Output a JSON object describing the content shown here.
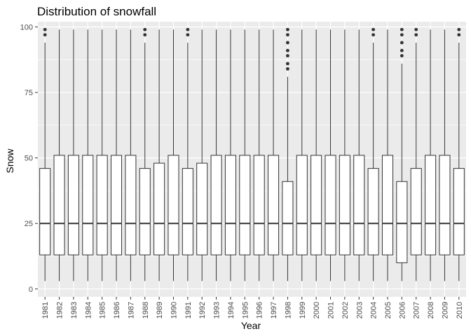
{
  "chart_data": {
    "type": "boxplot",
    "title": "Distribution of snowfall",
    "xlabel": "Year",
    "ylabel": "Snow",
    "ylim": [
      -3,
      102
    ],
    "yticks": [
      0,
      25,
      50,
      75,
      100
    ],
    "categories": [
      "1981",
      "1982",
      "1983",
      "1984",
      "1985",
      "1986",
      "1987",
      "1988",
      "1989",
      "1990",
      "1991",
      "1992",
      "1993",
      "1994",
      "1995",
      "1996",
      "1997",
      "1998",
      "1999",
      "2000",
      "2001",
      "2002",
      "2003",
      "2004",
      "2005",
      "2006",
      "2007",
      "2008",
      "2009",
      "2010"
    ],
    "boxes": [
      {
        "whisker_low": 3,
        "q1": 13,
        "median": 25,
        "q3": 46,
        "whisker_high": 94,
        "outliers": [
          97,
          99
        ]
      },
      {
        "whisker_low": 3,
        "q1": 13,
        "median": 25,
        "q3": 51,
        "whisker_high": 99,
        "outliers": []
      },
      {
        "whisker_low": 3,
        "q1": 13,
        "median": 25,
        "q3": 51,
        "whisker_high": 99,
        "outliers": []
      },
      {
        "whisker_low": 3,
        "q1": 13,
        "median": 25,
        "q3": 51,
        "whisker_high": 99,
        "outliers": []
      },
      {
        "whisker_low": 3,
        "q1": 13,
        "median": 25,
        "q3": 51,
        "whisker_high": 99,
        "outliers": []
      },
      {
        "whisker_low": 3,
        "q1": 13,
        "median": 25,
        "q3": 51,
        "whisker_high": 99,
        "outliers": []
      },
      {
        "whisker_low": 3,
        "q1": 13,
        "median": 25,
        "q3": 51,
        "whisker_high": 99,
        "outliers": []
      },
      {
        "whisker_low": 3,
        "q1": 13,
        "median": 25,
        "q3": 46,
        "whisker_high": 94,
        "outliers": [
          97,
          99
        ]
      },
      {
        "whisker_low": 3,
        "q1": 13,
        "median": 25,
        "q3": 48,
        "whisker_high": 99,
        "outliers": []
      },
      {
        "whisker_low": 3,
        "q1": 13,
        "median": 25,
        "q3": 51,
        "whisker_high": 99,
        "outliers": []
      },
      {
        "whisker_low": 3,
        "q1": 13,
        "median": 25,
        "q3": 46,
        "whisker_high": 94,
        "outliers": [
          97,
          99
        ]
      },
      {
        "whisker_low": 3,
        "q1": 13,
        "median": 25,
        "q3": 48,
        "whisker_high": 99,
        "outliers": []
      },
      {
        "whisker_low": 3,
        "q1": 13,
        "median": 25,
        "q3": 51,
        "whisker_high": 99,
        "outliers": []
      },
      {
        "whisker_low": 3,
        "q1": 13,
        "median": 25,
        "q3": 51,
        "whisker_high": 99,
        "outliers": []
      },
      {
        "whisker_low": 3,
        "q1": 13,
        "median": 25,
        "q3": 51,
        "whisker_high": 99,
        "outliers": []
      },
      {
        "whisker_low": 3,
        "q1": 13,
        "median": 25,
        "q3": 51,
        "whisker_high": 99,
        "outliers": []
      },
      {
        "whisker_low": 3,
        "q1": 13,
        "median": 25,
        "q3": 51,
        "whisker_high": 99,
        "outliers": []
      },
      {
        "whisker_low": 3,
        "q1": 13,
        "median": 25,
        "q3": 41,
        "whisker_high": 81,
        "outliers": [
          84,
          86,
          89,
          91,
          94,
          97,
          99
        ]
      },
      {
        "whisker_low": 3,
        "q1": 13,
        "median": 25,
        "q3": 51,
        "whisker_high": 99,
        "outliers": []
      },
      {
        "whisker_low": 3,
        "q1": 13,
        "median": 25,
        "q3": 51,
        "whisker_high": 99,
        "outliers": []
      },
      {
        "whisker_low": 3,
        "q1": 13,
        "median": 25,
        "q3": 51,
        "whisker_high": 99,
        "outliers": []
      },
      {
        "whisker_low": 3,
        "q1": 13,
        "median": 25,
        "q3": 51,
        "whisker_high": 99,
        "outliers": []
      },
      {
        "whisker_low": 3,
        "q1": 13,
        "median": 25,
        "q3": 51,
        "whisker_high": 99,
        "outliers": []
      },
      {
        "whisker_low": 3,
        "q1": 13,
        "median": 25,
        "q3": 46,
        "whisker_high": 94,
        "outliers": [
          97,
          99
        ]
      },
      {
        "whisker_low": 3,
        "q1": 13,
        "median": 25,
        "q3": 51,
        "whisker_high": 99,
        "outliers": []
      },
      {
        "whisker_low": 3,
        "q1": 10,
        "median": 25,
        "q3": 41,
        "whisker_high": 86,
        "outliers": [
          89,
          91,
          94,
          97,
          99
        ]
      },
      {
        "whisker_low": 3,
        "q1": 13,
        "median": 25,
        "q3": 46,
        "whisker_high": 94,
        "outliers": [
          97,
          99
        ]
      },
      {
        "whisker_low": 3,
        "q1": 13,
        "median": 25,
        "q3": 51,
        "whisker_high": 99,
        "outliers": []
      },
      {
        "whisker_low": 3,
        "q1": 13,
        "median": 25,
        "q3": 51,
        "whisker_high": 99,
        "outliers": []
      },
      {
        "whisker_low": 3,
        "q1": 13,
        "median": 25,
        "q3": 46,
        "whisker_high": 94,
        "outliers": [
          97,
          99
        ]
      }
    ],
    "colors": {
      "panel_bg": "#ebebeb",
      "grid_major": "#ffffff",
      "box_fill": "#ffffff",
      "box_line": "#333333",
      "tick_text": "#4d4d4d",
      "tick_mark": "#333333"
    }
  }
}
